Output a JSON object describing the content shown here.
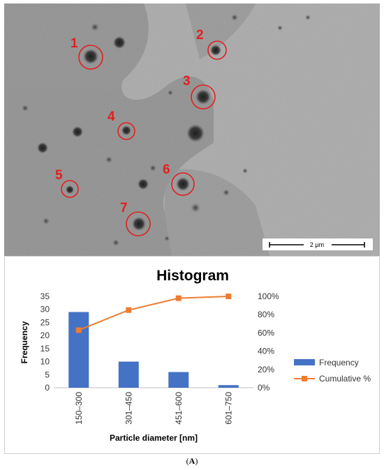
{
  "micrograph": {
    "scale_bar_label": "2 μm",
    "marked_particles": [
      "1",
      "2",
      "3",
      "4",
      "5",
      "6",
      "7"
    ],
    "marker_color": "#e0201e"
  },
  "chart_data": {
    "type": "bar",
    "title": "Histogram",
    "xlabel": "Particle diameter [nm]",
    "ylabel": "Frequency",
    "categories": [
      "150–300",
      "301–450",
      "451–600",
      "601–750"
    ],
    "ylim": [
      0,
      35
    ],
    "yticks": [
      0,
      5,
      10,
      15,
      20,
      25,
      30,
      35
    ],
    "y2lim": [
      0,
      100
    ],
    "y2ticks": [
      "0%",
      "20%",
      "40%",
      "60%",
      "80%",
      "100%"
    ],
    "grid": false,
    "legend_position": "right",
    "series": [
      {
        "name": "Frequency",
        "type": "bar",
        "axis": "left",
        "color": "#4472c4",
        "values": [
          29,
          10,
          6,
          1
        ]
      },
      {
        "name": "Cumulative %",
        "type": "line",
        "axis": "right",
        "color": "#ed7d31",
        "values": [
          63,
          85,
          98,
          100
        ]
      }
    ]
  },
  "caption": {
    "open": "(",
    "label": "A",
    "close": ")"
  }
}
